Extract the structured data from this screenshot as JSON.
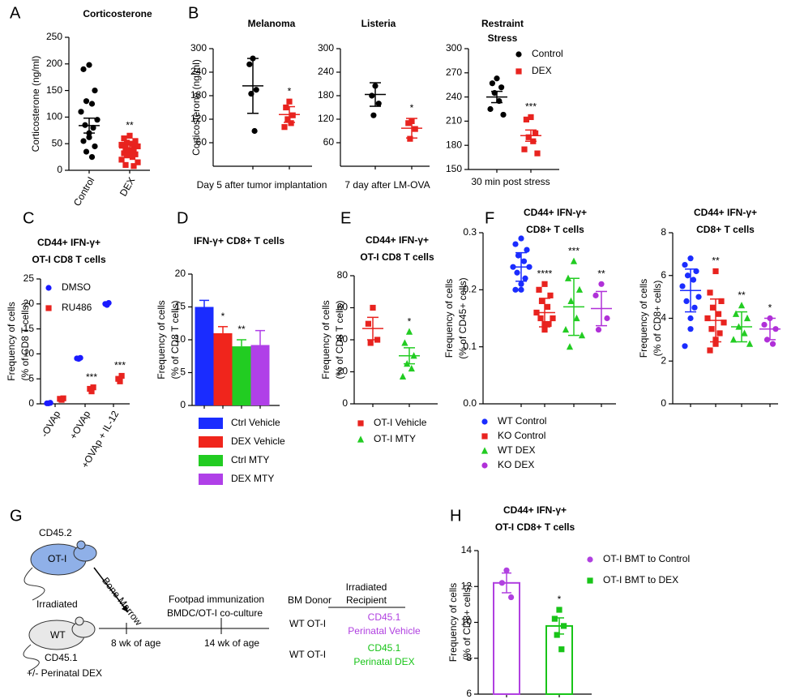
{
  "panel_labels": [
    "A",
    "B",
    "C",
    "D",
    "E",
    "F",
    "G",
    "H"
  ],
  "chart_data": [
    {
      "type": "strip",
      "title": [
        "Corticosterone"
      ],
      "ylabel": [
        "Corticosterone (ng/ml)"
      ],
      "categories": [
        "Control",
        "DEX"
      ],
      "ylim": [
        0,
        250
      ],
      "yticks": [
        0,
        50,
        100,
        150,
        200,
        250
      ],
      "mean_style": "line",
      "series": [
        {
          "color": "#000000",
          "marker": "circle",
          "values": [
            [
              198,
              190,
              150,
              130,
              125,
              110,
              95,
              85,
              80,
              70,
              62,
              55,
              45,
              35,
              25
            ],
            null
          ],
          "mean": [
            84,
            null
          ],
          "err": [
            14,
            null
          ]
        },
        {
          "color": "#e8231f",
          "marker": "square",
          "values": [
            null,
            [
              65,
              60,
              55,
              52,
              50,
              48,
              45,
              42,
              40,
              38,
              35,
              32,
              30,
              28,
              25,
              20,
              15,
              10,
              8
            ]
          ],
          "mean": [
            null,
            42
          ],
          "err": [
            null,
            7
          ],
          "annotations": [
            null,
            "**"
          ]
        }
      ]
    },
    {
      "type": "strip",
      "title": [
        "Melanoma"
      ],
      "ylabel": [
        "Corticosterone (ng/ml)"
      ],
      "xlabel": "Day 5 after tumor implantation",
      "categories": [
        null,
        null
      ],
      "ylim": [
        0,
        300
      ],
      "yticks": [
        60,
        120,
        180,
        240,
        300
      ],
      "mean_style": "line",
      "series": [
        {
          "color": "#000000",
          "marker": "circle",
          "values": [
            [
              275,
              260,
              195,
              185,
              90
            ],
            null
          ],
          "mean": [
            205,
            null
          ],
          "err": [
            70,
            null
          ]
        },
        {
          "color": "#e8231f",
          "marker": "square",
          "values": [
            null,
            [
              165,
              150,
              130,
              120,
              110,
              100
            ]
          ],
          "mean": [
            null,
            132
          ],
          "err": [
            null,
            20
          ],
          "annotations": [
            null,
            "*"
          ]
        }
      ]
    },
    {
      "type": "strip",
      "title": [
        "Listeria"
      ],
      "xlabel": "7 day after LM-OVA",
      "categories": [
        null,
        null
      ],
      "ylim": [
        0,
        300
      ],
      "yticks": [
        60,
        120,
        180,
        240,
        300
      ],
      "mean_style": "line",
      "series": [
        {
          "color": "#000000",
          "marker": "circle",
          "values": [
            [
              205,
              180,
              160,
              130
            ],
            null
          ],
          "mean": [
            183,
            null
          ],
          "err": [
            30,
            null
          ]
        },
        {
          "color": "#e8231f",
          "marker": "square",
          "values": [
            null,
            [
              115,
              110,
              95,
              70
            ]
          ],
          "mean": [
            null,
            97
          ],
          "err": [
            null,
            25
          ],
          "annotations": [
            null,
            "*"
          ]
        }
      ]
    },
    {
      "type": "strip",
      "title": [
        "Restraint",
        "Stress"
      ],
      "xlabel": "30 min post stress",
      "categories": [
        null,
        null
      ],
      "ylim": [
        150,
        300
      ],
      "yticks": [
        150,
        180,
        210,
        240,
        270,
        300
      ],
      "mean_style": "line",
      "legend": "upper right",
      "series": [
        {
          "name": "Control",
          "color": "#000000",
          "marker": "circle",
          "values": [
            [
              263,
              257,
              252,
              245,
              235,
              225,
              218
            ],
            null
          ],
          "mean": [
            240,
            null
          ],
          "err": [
            7,
            null
          ]
        },
        {
          "name": "DEX",
          "color": "#e8231f",
          "marker": "square",
          "values": [
            null,
            [
              215,
              212,
              195,
              190,
              185,
              175,
              170
            ]
          ],
          "mean": [
            null,
            192
          ],
          "err": [
            null,
            7
          ],
          "annotations": [
            null,
            "***"
          ]
        }
      ]
    },
    {
      "type": "strip",
      "title": [
        "CD44+ IFN-γ+",
        "OT-I CD8 T cells"
      ],
      "ylabel": [
        "Frequency of cells",
        "(% of CD8 T cells)"
      ],
      "categories": [
        "-OVAp",
        "+OVAp",
        "+OVAp + IL-12"
      ],
      "ylim": [
        0,
        25
      ],
      "yticks": [
        0,
        5,
        10,
        15,
        20,
        25
      ],
      "mean_style": "none",
      "legend": "upper left",
      "series": [
        {
          "name": "DMSO",
          "color": "#1a1aff",
          "marker": "circle",
          "values": [
            [
              0.1,
              0.1,
              0.2
            ],
            [
              9,
              9.1,
              9.2
            ],
            [
              19.8,
              20,
              20.2
            ]
          ]
        },
        {
          "name": "RU486",
          "color": "#e8231f",
          "marker": "square",
          "values": [
            [
              0.8,
              1,
              1.1
            ],
            [
              2.5,
              3,
              3.3
            ],
            [
              4.5,
              5,
              5.6
            ]
          ],
          "annotations": [
            null,
            "***",
            "***"
          ]
        }
      ]
    },
    {
      "type": "strip",
      "title": [
        "IFN-γ+ CD8+ T cells"
      ],
      "ylabel": [
        "Frequency of cells",
        "(% of CD8 T cells)"
      ],
      "categories": [
        null,
        null,
        null,
        null
      ],
      "ylim": [
        0,
        20
      ],
      "yticks": [
        0,
        5,
        10,
        15,
        20
      ],
      "mean_style": "bar",
      "legend": "below",
      "series": [
        {
          "name": "Ctrl Vehicle",
          "color": "#1a2cff",
          "mean": [
            15,
            null,
            null,
            null
          ],
          "err": [
            1,
            null,
            null,
            null
          ]
        },
        {
          "name": "DEX Vehicle",
          "color": "#f0251c",
          "mean": [
            null,
            11,
            null,
            null
          ],
          "err": [
            null,
            1,
            null,
            null
          ],
          "annotations": [
            null,
            "*",
            null,
            null
          ]
        },
        {
          "name": "Ctrl MTY",
          "color": "#22cc22",
          "mean": [
            null,
            null,
            9,
            null
          ],
          "err": [
            null,
            null,
            1,
            null
          ],
          "annotations": [
            null,
            null,
            "**",
            null
          ]
        },
        {
          "name": "DEX MTY",
          "color": "#b040e8",
          "mean": [
            null,
            null,
            null,
            9.2
          ],
          "err": [
            null,
            null,
            null,
            2.2
          ]
        }
      ]
    },
    {
      "type": "strip",
      "title": [
        "CD44+ IFN-γ+",
        "OT-I CD8 T cells"
      ],
      "ylabel": [
        "Frequency of cells",
        "(% of CD8 T cells)"
      ],
      "categories": [
        null,
        null
      ],
      "ylim": [
        0,
        80
      ],
      "yticks": [
        0,
        20,
        40,
        60,
        80
      ],
      "mean_style": "line",
      "legend": "below",
      "series": [
        {
          "name": "OT-I Vehicle",
          "color": "#e8231f",
          "marker": "square",
          "values": [
            [
              60,
              50,
              40,
              38
            ],
            null
          ],
          "mean": [
            47,
            null
          ],
          "err": [
            7,
            null
          ]
        },
        {
          "name": "OT-I MTY",
          "color": "#22cc22",
          "marker": "triangle",
          "values": [
            null,
            [
              45,
              38,
              30,
              25,
              22,
              17
            ]
          ],
          "mean": [
            null,
            30
          ],
          "err": [
            null,
            5
          ],
          "annotations": [
            null,
            "*"
          ]
        }
      ]
    },
    {
      "type": "strip",
      "title": [
        "CD44+ IFN-γ+",
        "CD8+ T cells"
      ],
      "ylabel": [
        "Frequency of cells",
        "(% of CD45+ cells)"
      ],
      "categories": [
        null,
        null,
        null,
        null
      ],
      "ylim": [
        0,
        0.3
      ],
      "yticks": [
        {
          "value": 0,
          "label": "0.0"
        },
        0.1,
        0.2,
        0.3
      ],
      "mean_style": "line",
      "legend": "below",
      "series": [
        {
          "name": "WT Control",
          "color": "#1a2cff",
          "marker": "circle",
          "values": [
            [
              0.29,
              0.28,
              0.27,
              0.26,
              0.25,
              0.24,
              0.24,
              0.23,
              0.22,
              0.21,
              0.2,
              0.2
            ],
            null,
            null,
            null
          ],
          "mean": [
            0.24,
            null,
            null,
            null
          ],
          "err": [
            0.025,
            null,
            null,
            null
          ]
        },
        {
          "name": "KO Control",
          "color": "#e8231f",
          "marker": "square",
          "values": [
            null,
            [
              0.21,
              0.2,
              0.19,
              0.18,
              0.17,
              0.16,
              0.15,
              0.15,
              0.14,
              0.14,
              0.13
            ],
            null,
            null
          ],
          "mean": [
            null,
            0.16,
            null,
            null
          ],
          "err": [
            null,
            0.025,
            null,
            null
          ],
          "annotations": [
            null,
            "****",
            null,
            null
          ]
        },
        {
          "name": "WT DEX",
          "color": "#22cc22",
          "marker": "triangle",
          "values": [
            null,
            null,
            [
              0.25,
              0.22,
              0.2,
              0.18,
              0.15,
              0.13,
              0.12,
              0.1
            ],
            null
          ],
          "mean": [
            null,
            null,
            0.17,
            null
          ],
          "err": [
            null,
            null,
            0.05,
            null
          ],
          "annotations": [
            null,
            null,
            "***",
            null
          ]
        },
        {
          "name": "KO DEX",
          "color": "#b030d8",
          "marker": "circle",
          "values": [
            null,
            null,
            null,
            [
              0.21,
              0.19,
              0.15,
              0.13
            ]
          ],
          "mean": [
            null,
            null,
            null,
            0.167
          ],
          "err": [
            null,
            null,
            null,
            0.03
          ],
          "annotations": [
            null,
            null,
            null,
            "**"
          ]
        }
      ]
    },
    {
      "type": "strip",
      "title": [
        "CD44+ IFN-γ+",
        "CD8+ T cells"
      ],
      "ylabel": [
        "Frequency of cells",
        "(% of CD8+ cells)"
      ],
      "categories": [
        null,
        null,
        null,
        null
      ],
      "ylim": [
        0,
        8
      ],
      "yticks": [
        0,
        2,
        4,
        6,
        8
      ],
      "mean_style": "line",
      "series": [
        {
          "color": "#1a2cff",
          "marker": "circle",
          "values": [
            [
              6.8,
              6.5,
              6.2,
              6,
              5.8,
              5.5,
              5,
              4.8,
              4.5,
              4,
              3.5,
              2.7
            ],
            null,
            null,
            null
          ],
          "mean": [
            5.3,
            null,
            null,
            null
          ],
          "err": [
            1,
            null,
            null,
            null
          ]
        },
        {
          "color": "#e8231f",
          "marker": "square",
          "values": [
            null,
            [
              6.2,
              5.2,
              4.8,
              4.5,
              4.2,
              4,
              3.8,
              3.5,
              3.3,
              3,
              2.8,
              2.5
            ],
            null,
            null
          ],
          "mean": [
            null,
            3.9,
            null,
            null
          ],
          "err": [
            null,
            1,
            null,
            null
          ],
          "annotations": [
            null,
            "**",
            null,
            null
          ]
        },
        {
          "color": "#22cc22",
          "marker": "triangle",
          "values": [
            null,
            null,
            [
              4.6,
              4.2,
              4,
              3.6,
              3.3,
              3,
              2.8
            ],
            null
          ],
          "mean": [
            null,
            null,
            3.6,
            null
          ],
          "err": [
            null,
            null,
            0.7,
            null
          ],
          "annotations": [
            null,
            null,
            "**",
            null
          ]
        },
        {
          "color": "#b030d8",
          "marker": "circle",
          "values": [
            null,
            null,
            null,
            [
              4,
              3.7,
              3.5,
              3,
              2.8
            ]
          ],
          "mean": [
            null,
            null,
            null,
            3.5
          ],
          "err": [
            null,
            null,
            null,
            0.5
          ],
          "annotations": [
            null,
            null,
            null,
            "*"
          ]
        }
      ]
    },
    {
      "type": "strip",
      "title": [
        "CD44+ IFN-γ+",
        "OT-I CD8+ T cells"
      ],
      "ylabel": [
        "Frequency of cells",
        "(% of CD8+ cells)"
      ],
      "categories": [
        null,
        null
      ],
      "ylim": [
        6,
        14
      ],
      "yticks": [
        6,
        8,
        10,
        12,
        14
      ],
      "mean_style": "hollow_bar",
      "legend": "right",
      "series": [
        {
          "name": "OT-I BMT to Control",
          "color": "#b040e0",
          "marker": "circle",
          "values": [
            [
              12.9,
              12.2,
              11.4
            ],
            null
          ],
          "mean": [
            12.2,
            null
          ],
          "err": [
            0.55,
            null
          ]
        },
        {
          "name": "OT-I BMT to DEX",
          "color": "#18c418",
          "marker": "square",
          "values": [
            null,
            [
              10.7,
              10.2,
              9.8,
              9.3,
              8.5
            ]
          ],
          "mean": [
            null,
            9.8
          ],
          "err": [
            null,
            0.45
          ],
          "annotations": [
            null,
            "*"
          ]
        }
      ]
    }
  ],
  "diagram": {
    "donor_strain": "CD45.2",
    "donor": "OT-I",
    "arrow": "Bone Marrow",
    "recipient_state": "Irradiated",
    "recipient": "WT",
    "recipient_strain": "CD45.1",
    "treatment": "+/- Perinatal DEX",
    "timeline": [
      "8 wk of age",
      "14 wk of age"
    ],
    "event": [
      "Footpad immunization",
      "BMDC/OT-I co-culture"
    ],
    "table": {
      "header": [
        "BM Donor",
        [
          "Irradiated",
          "Recipient"
        ]
      ],
      "rows": [
        [
          "WT OT-I",
          [
            "CD45.1",
            "Perinatal Vehicle"
          ]
        ],
        [
          "WT OT-I",
          [
            "CD45.1",
            "Perinatal DEX"
          ]
        ]
      ]
    }
  }
}
